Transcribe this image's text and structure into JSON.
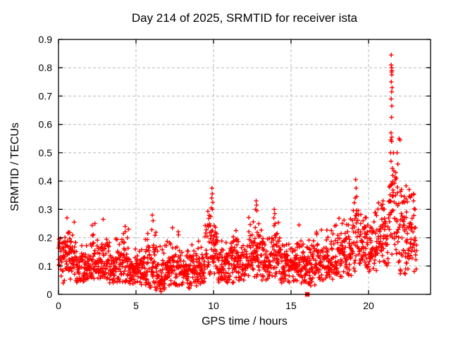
{
  "figure": {
    "title": "Day 214 of 2025, SRMTID for receiver ista",
    "xlabel": "GPS time / hours",
    "ylabel": "SRMTID / TECUs"
  },
  "chart_data": {
    "type": "scatter",
    "title": "Day 214 of 2025, SRMTID for receiver ista",
    "xlabel": "GPS time / hours",
    "ylabel": "SRMTID / TECUs",
    "xlim": [
      0,
      24
    ],
    "ylim": [
      0,
      0.9
    ],
    "xticks": {
      "values": [
        0,
        5,
        10,
        15,
        20
      ],
      "labels": [
        "0",
        "5",
        "10",
        "15",
        "20"
      ]
    },
    "yticks": {
      "values": [
        0,
        0.1,
        0.2,
        0.3,
        0.4,
        0.5,
        0.6,
        0.7,
        0.8,
        0.9
      ],
      "labels": [
        "0",
        "0.1",
        "0.2",
        "0.3",
        "0.4",
        "0.5",
        "0.6",
        "0.7",
        "0.8",
        "0.9"
      ]
    },
    "grid": {
      "show": true,
      "style": "dashed",
      "color": "#b8b8b8"
    },
    "legend": {
      "show": false
    },
    "marker": {
      "shape": "plus",
      "color": "#ff0000",
      "size": 7
    },
    "series": [
      {
        "name": "SRMTID",
        "color": "#ff0000",
        "points_per_hour": 62,
        "seed": 214,
        "density_profile": [
          [
            0.0,
            0.35,
            0.125,
            0.035,
            0.05,
            0.2
          ],
          [
            0.35,
            0.75,
            0.135,
            0.05,
            0.03,
            0.24
          ],
          [
            0.75,
            1.15,
            0.115,
            0.05,
            0.04,
            0.26
          ],
          [
            1.15,
            2.1,
            0.095,
            0.03,
            0.04,
            0.18
          ],
          [
            2.1,
            2.75,
            0.115,
            0.05,
            0.05,
            0.25
          ],
          [
            2.75,
            3.3,
            0.1,
            0.045,
            0.05,
            0.22
          ],
          [
            3.3,
            4.0,
            0.095,
            0.035,
            0.04,
            0.2
          ],
          [
            4.0,
            4.55,
            0.11,
            0.05,
            0.04,
            0.24
          ],
          [
            4.55,
            5.6,
            0.085,
            0.03,
            0.03,
            0.16
          ],
          [
            5.6,
            6.35,
            0.1,
            0.055,
            0.02,
            0.28
          ],
          [
            6.35,
            6.95,
            0.075,
            0.045,
            0.01,
            0.2
          ],
          [
            6.95,
            7.85,
            0.1,
            0.04,
            0.03,
            0.23
          ],
          [
            7.85,
            8.6,
            0.085,
            0.035,
            0.02,
            0.16
          ],
          [
            8.6,
            9.45,
            0.09,
            0.04,
            0.03,
            0.2
          ],
          [
            9.45,
            10.25,
            0.17,
            0.06,
            0.07,
            0.3
          ],
          [
            10.25,
            11.2,
            0.1,
            0.04,
            0.04,
            0.19
          ],
          [
            11.2,
            12.25,
            0.115,
            0.045,
            0.04,
            0.23
          ],
          [
            12.25,
            13.1,
            0.15,
            0.05,
            0.06,
            0.28
          ],
          [
            13.1,
            13.7,
            0.11,
            0.04,
            0.05,
            0.2
          ],
          [
            13.7,
            14.3,
            0.14,
            0.055,
            0.06,
            0.27
          ],
          [
            14.3,
            15.6,
            0.1,
            0.035,
            0.04,
            0.18
          ],
          [
            15.6,
            16.6,
            0.1,
            0.04,
            0.03,
            0.2
          ],
          [
            16.6,
            17.8,
            0.12,
            0.04,
            0.05,
            0.23
          ],
          [
            17.8,
            19.0,
            0.14,
            0.05,
            0.06,
            0.27
          ],
          [
            19.0,
            19.55,
            0.2,
            0.07,
            0.08,
            0.33
          ],
          [
            19.55,
            20.6,
            0.17,
            0.055,
            0.08,
            0.3
          ],
          [
            20.6,
            21.3,
            0.2,
            0.06,
            0.1,
            0.33
          ],
          [
            21.3,
            21.8,
            0.29,
            0.1,
            0.12,
            0.5
          ],
          [
            21.8,
            22.45,
            0.22,
            0.09,
            0.07,
            0.45
          ],
          [
            22.45,
            23.1,
            0.2,
            0.07,
            0.08,
            0.37
          ]
        ],
        "notable_points": [
          [
            21.47,
            0.845
          ],
          [
            21.46,
            0.81
          ],
          [
            21.49,
            0.8
          ],
          [
            21.51,
            0.79
          ],
          [
            21.48,
            0.785
          ],
          [
            21.5,
            0.775
          ],
          [
            21.47,
            0.75
          ],
          [
            21.52,
            0.73
          ],
          [
            21.49,
            0.715
          ],
          [
            21.46,
            0.69
          ],
          [
            21.5,
            0.665
          ],
          [
            21.48,
            0.625
          ],
          [
            21.45,
            0.57
          ],
          [
            21.5,
            0.555
          ],
          [
            21.43,
            0.545
          ],
          [
            21.49,
            0.54
          ],
          [
            21.42,
            0.5
          ],
          [
            21.45,
            0.47
          ],
          [
            21.53,
            0.445
          ],
          [
            21.56,
            0.42
          ],
          [
            21.4,
            0.385
          ],
          [
            21.59,
            0.36
          ],
          [
            21.97,
            0.55
          ],
          [
            22.03,
            0.545
          ],
          [
            21.84,
            0.5
          ],
          [
            21.89,
            0.46
          ],
          [
            21.8,
            0.41
          ],
          [
            22.12,
            0.37
          ],
          [
            22.3,
            0.345
          ],
          [
            22.62,
            0.37
          ],
          [
            22.68,
            0.345
          ],
          [
            22.9,
            0.33
          ],
          [
            23.0,
            0.3
          ],
          [
            22.32,
            0.075
          ],
          [
            22.4,
            0.09
          ],
          [
            19.17,
            0.405
          ],
          [
            19.2,
            0.375
          ],
          [
            19.23,
            0.345
          ],
          [
            19.14,
            0.34
          ],
          [
            9.9,
            0.375
          ],
          [
            9.92,
            0.355
          ],
          [
            9.88,
            0.34
          ],
          [
            9.95,
            0.325
          ],
          [
            9.85,
            0.305
          ],
          [
            9.93,
            0.3
          ],
          [
            12.75,
            0.33
          ],
          [
            12.78,
            0.315
          ],
          [
            12.71,
            0.3
          ],
          [
            12.8,
            0.295
          ],
          [
            13.92,
            0.3
          ],
          [
            13.95,
            0.285
          ],
          [
            13.89,
            0.27
          ],
          [
            15.52,
            0.245
          ],
          [
            15.85,
            0.045
          ],
          [
            16.35,
            0.045
          ],
          [
            10.9,
            0.05
          ],
          [
            8.9,
            0.03
          ],
          [
            6.3,
            0.015
          ],
          [
            6.55,
            0.02
          ],
          [
            6.62,
            0.01
          ],
          [
            0.55,
            0.27
          ],
          [
            1.02,
            0.255
          ],
          [
            2.35,
            0.25
          ],
          [
            2.88,
            0.265
          ],
          [
            4.3,
            0.24
          ],
          [
            6.05,
            0.28
          ],
          [
            6.1,
            0.26
          ],
          [
            7.35,
            0.235
          ],
          [
            11.45,
            0.225
          ],
          [
            17.6,
            0.225
          ],
          [
            18.3,
            0.25
          ],
          [
            0.3,
            0.04
          ]
        ],
        "square_points": [
          [
            16.05,
            0.0
          ]
        ]
      }
    ]
  }
}
